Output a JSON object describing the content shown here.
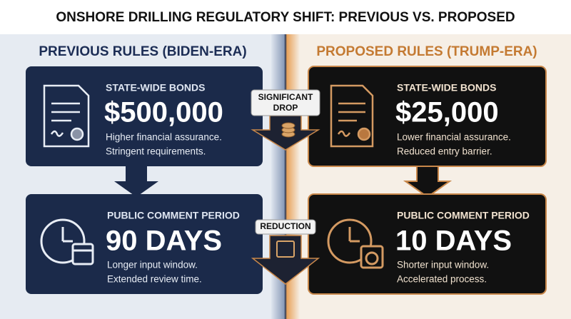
{
  "title": "ONSHORE DRILLING REGULATORY SHIFT: PREVIOUS VS. PROPOSED",
  "columns": [
    {
      "heading": "PREVIOUS RULES (BIDEN-ERA)",
      "cards": [
        {
          "label": "STATE-WIDE BONDS",
          "value": "$500,000",
          "description": [
            "Higher financial assurance.",
            "Stringent requirements."
          ]
        },
        {
          "label": "PUBLIC COMMENT PERIOD",
          "value": "90 DAYS",
          "description": [
            "Longer input window.",
            "Extended review time."
          ]
        }
      ]
    },
    {
      "heading": "PROPOSED RULES (TRUMP-ERA)",
      "cards": [
        {
          "label": "STATE-WIDE BONDS",
          "value": "$25,000",
          "description": [
            "Lower financial assurance.",
            "Reduced entry barrier."
          ]
        },
        {
          "label": "PUBLIC COMMENT PERIOD",
          "value": "10 DAYS",
          "description": [
            "Shorter input window.",
            "Accelerated process."
          ]
        }
      ]
    }
  ],
  "transitions": [
    {
      "label": [
        "SIGNIFICANT",
        "DROP"
      ]
    },
    {
      "label": [
        "REDUCTION"
      ]
    }
  ]
}
